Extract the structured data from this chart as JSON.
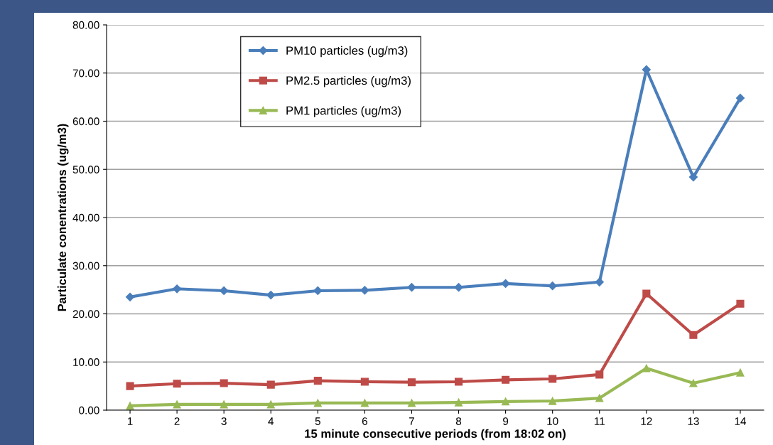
{
  "chart_data": {
    "type": "line",
    "xlabel": "15 minute consecutive periods (from 18:02 on)",
    "ylabel": "Particulate conentrations (ug/m3)",
    "categories": [
      "1",
      "2",
      "3",
      "4",
      "5",
      "6",
      "7",
      "8",
      "9",
      "10",
      "11",
      "12",
      "13",
      "14"
    ],
    "series": [
      {
        "name": "PM10 particles (ug/m3)",
        "color": "#4a7ebb",
        "marker": "diamond",
        "values": [
          23.5,
          25.2,
          24.8,
          23.9,
          24.8,
          24.9,
          25.5,
          25.5,
          26.3,
          25.8,
          26.6,
          70.7,
          48.4,
          64.8
        ]
      },
      {
        "name": "PM2.5 particles (ug/m3)",
        "color": "#be4b48",
        "marker": "square",
        "values": [
          5.0,
          5.5,
          5.6,
          5.3,
          6.1,
          5.9,
          5.8,
          5.9,
          6.3,
          6.5,
          7.4,
          24.2,
          15.6,
          22.1
        ]
      },
      {
        "name": "PM1 particles (ug/m3)",
        "color": "#98b954",
        "marker": "triangle",
        "values": [
          0.9,
          1.2,
          1.2,
          1.2,
          1.5,
          1.5,
          1.5,
          1.6,
          1.8,
          1.9,
          2.5,
          8.7,
          5.6,
          7.8
        ]
      }
    ],
    "ylim": [
      0,
      80
    ],
    "yticks": [
      {
        "value": 0,
        "label": "0.00"
      },
      {
        "value": 10,
        "label": "10.00"
      },
      {
        "value": 20,
        "label": "20.00"
      },
      {
        "value": 30,
        "label": "30.00"
      },
      {
        "value": 40,
        "label": "40.00"
      },
      {
        "value": 50,
        "label": "50.00"
      },
      {
        "value": 60,
        "label": "60.00"
      },
      {
        "value": 70,
        "label": "70.00"
      },
      {
        "value": 80,
        "label": "80.00"
      }
    ],
    "grid": "y",
    "legend": "top",
    "line_style": "solid"
  }
}
